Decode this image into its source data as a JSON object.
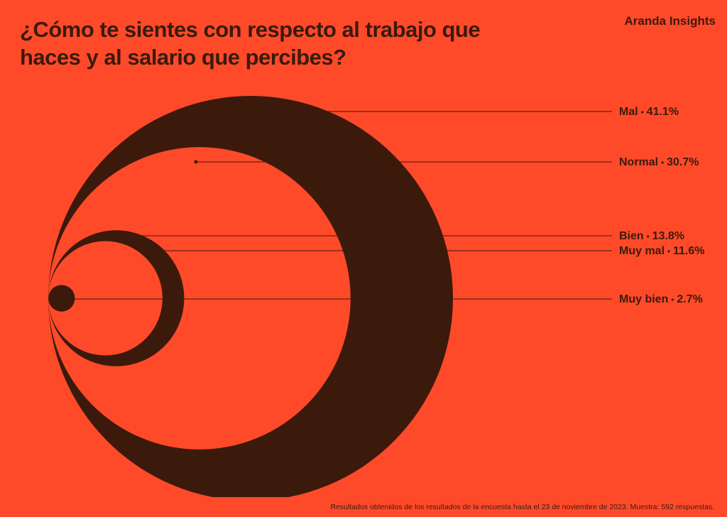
{
  "brand": "Aranda Insights",
  "footnote": "Resultados obtenidos de los resultados de la encuesta hasta el 23 de noviembre de 2023. Muestra: 592 respuestas.",
  "chart_data": {
    "type": "nested_circles",
    "title": "¿Cómo te sientes con respecto al trabajo que haces y al salario que percibes?",
    "categories": [
      "Mal",
      "Normal",
      "Bien",
      "Muy mal",
      "Muy bien"
    ],
    "values": [
      41.1,
      30.7,
      13.8,
      11.6,
      2.7
    ],
    "value_labels": [
      "41.1%",
      "30.7%",
      "13.8%",
      "11.6%",
      "2.7%"
    ],
    "colors": [
      "#3b1a0c",
      "#ff4a2a",
      "#3b1a0c",
      "#ff4a2a",
      "#3b1a0c"
    ]
  }
}
